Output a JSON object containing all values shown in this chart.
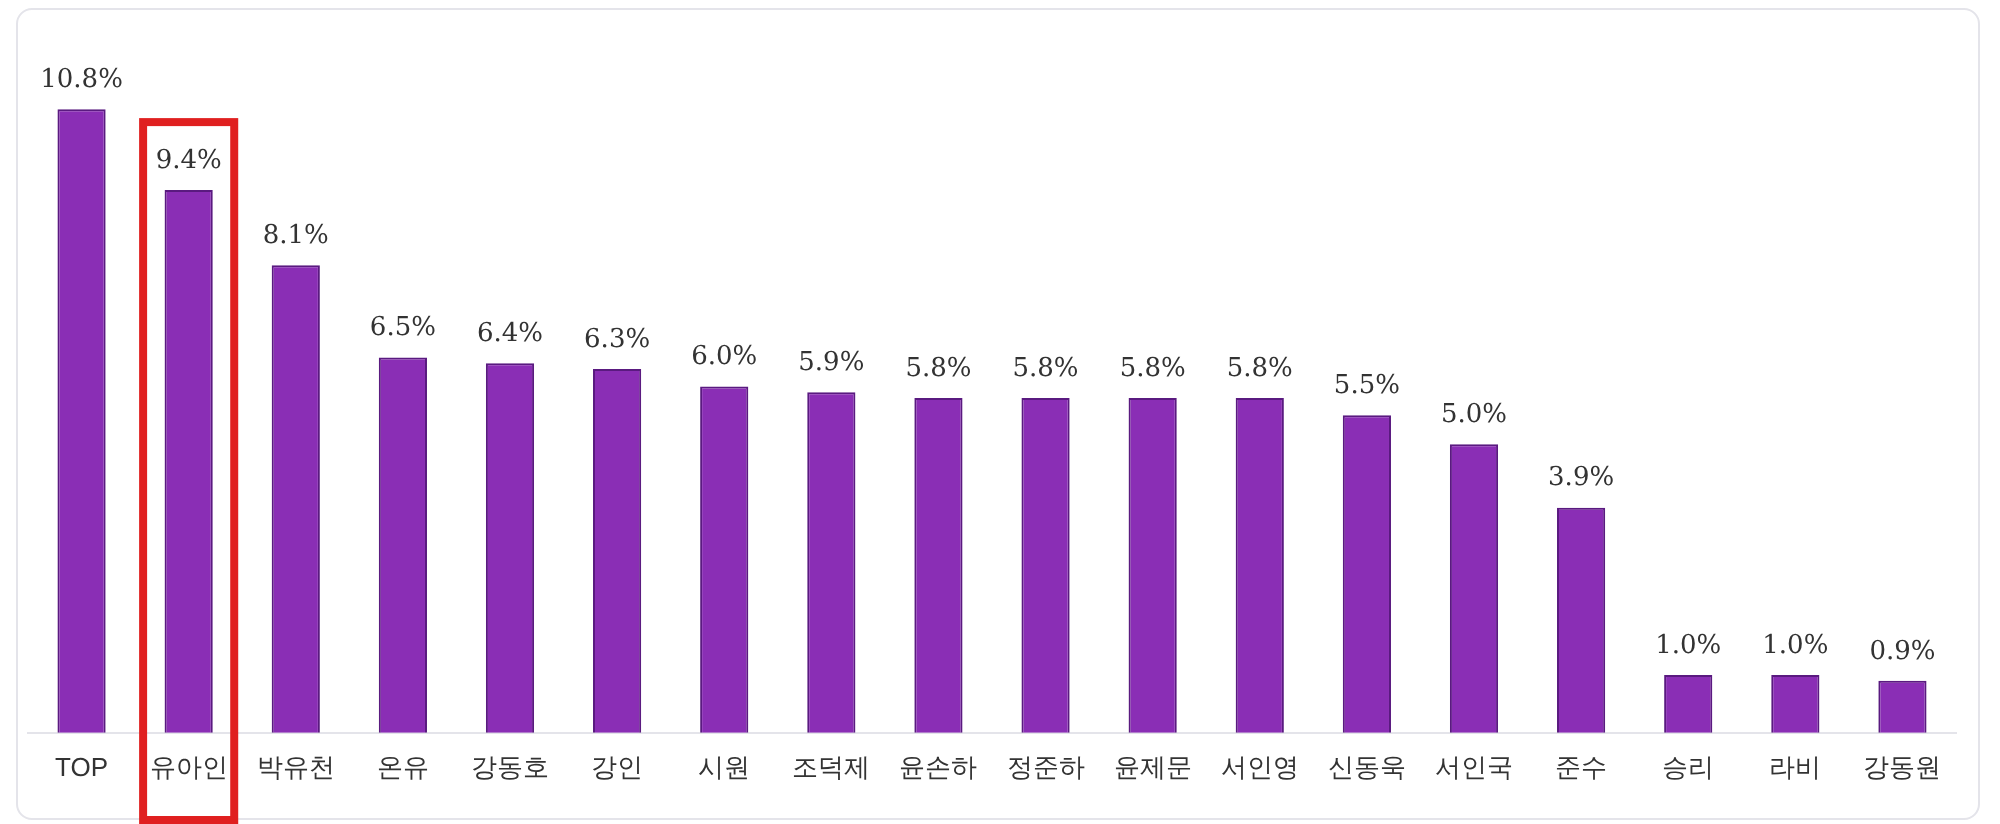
{
  "chart_data": {
    "type": "bar",
    "categories": [
      "TOP",
      "유아인",
      "박유천",
      "온유",
      "강동호",
      "강인",
      "시원",
      "조덕제",
      "윤손하",
      "정준하",
      "윤제문",
      "서인영",
      "신동욱",
      "서인국",
      "준수",
      "승리",
      "라비",
      "강동원"
    ],
    "values": [
      10.8,
      9.4,
      8.1,
      6.5,
      6.4,
      6.3,
      6.0,
      5.9,
      5.8,
      5.8,
      5.8,
      5.8,
      5.5,
      5.0,
      3.9,
      1.0,
      1.0,
      0.9
    ],
    "value_labels": [
      "10.8%",
      "9.4%",
      "8.1%",
      "6.5%",
      "6.4%",
      "6.3%",
      "6.0%",
      "5.9%",
      "5.8%",
      "5.8%",
      "5.8%",
      "5.8%",
      "5.5%",
      "5.0%",
      "3.9%",
      "1.0%",
      "1.0%",
      "0.9%"
    ],
    "color": "#8a2eb5",
    "legend": false,
    "tick_labels": "x"
  }
}
